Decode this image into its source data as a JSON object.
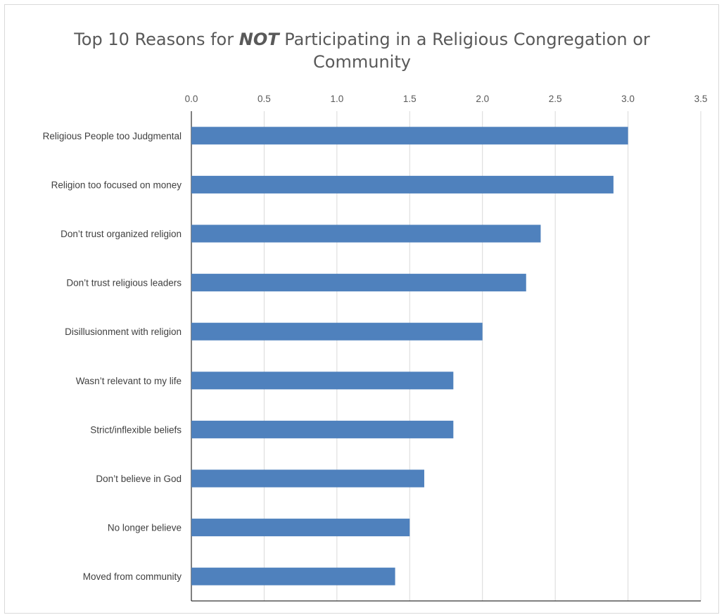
{
  "chart_data": {
    "type": "bar",
    "orientation": "horizontal",
    "title_parts": [
      "Top 10 Reasons for ",
      "NOT",
      " Participating in a Religious Congregation or",
      "Community"
    ],
    "xlabel": "",
    "ylabel": "",
    "categories": [
      "Religious People too Judgmental",
      "Religion too focused on money",
      "Don’t trust organized religion",
      "Don’t trust religious leaders",
      "Disillusionment with religion",
      "Wasn’t relevant to my life",
      "Strict/inflexible beliefs",
      "Don’t believe in God",
      "No longer believe",
      "Moved from community"
    ],
    "values": [
      3.0,
      2.9,
      2.4,
      2.3,
      2.0,
      1.8,
      1.8,
      1.6,
      1.5,
      1.4
    ],
    "xlim": [
      0,
      3.5
    ],
    "ticks": [
      "0.0",
      "0.5",
      "1.0",
      "1.5",
      "2.0",
      "2.5",
      "3.0",
      "3.5"
    ],
    "tick_position": "top",
    "grid": true,
    "legend": "none",
    "colors": {
      "bar": "#4f81bd",
      "grid": "#d9d9d9",
      "axis": "#000000"
    }
  }
}
